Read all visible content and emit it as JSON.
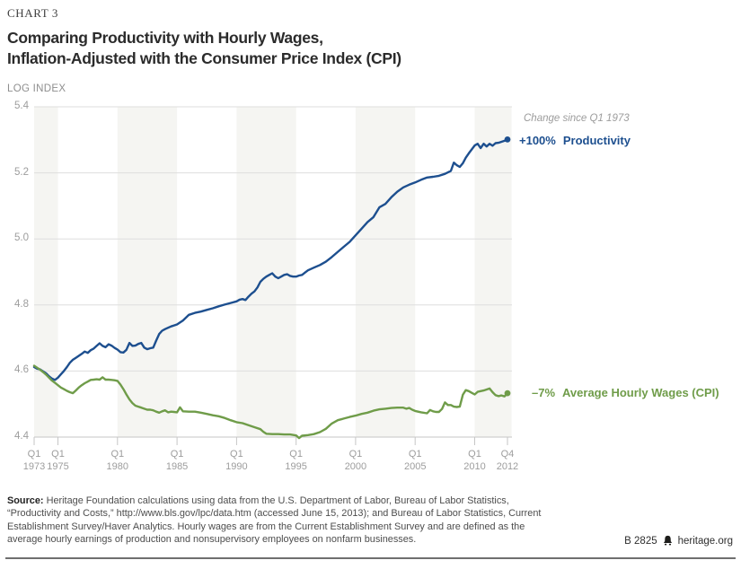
{
  "header": {
    "chart_label": "CHART 3",
    "title_line1": "Comparing Productivity with Hourly Wages,",
    "title_line2": "Inflation-Adjusted with the Consumer Price Index (CPI)"
  },
  "chart": {
    "y_axis_title": "LOG INDEX",
    "annotation_note": "Change since Q1 1973",
    "colors": {
      "productivity": "#1d4f8f",
      "wages": "#6f9c49",
      "band": "#f5f5f2",
      "gridline": "#dedede",
      "axis": "#c6c6c6",
      "tick_text": "#9d9d9d"
    }
  },
  "chart_data": {
    "type": "line",
    "title": "Comparing Productivity with Hourly Wages, Inflation-Adjusted with the Consumer Price Index (CPI)",
    "xlabel": "",
    "ylabel": "LOG INDEX",
    "ylim": [
      4.4,
      5.4
    ],
    "xlim": [
      1973,
      2013.1
    ],
    "grid": "horizontal",
    "legend_position": "right-annotations",
    "annotation_note": "Change since Q1 1973",
    "y_ticks": [
      {
        "label": "5.4",
        "v": 5.4
      },
      {
        "label": "5.2",
        "v": 5.2
      },
      {
        "label": "5.0",
        "v": 5.0
      },
      {
        "label": "4.8",
        "v": 4.8
      },
      {
        "label": "4.6",
        "v": 4.6
      },
      {
        "label": "4.4",
        "v": 4.4
      }
    ],
    "x_ticks": [
      {
        "q": "Q1",
        "year": "1973",
        "t": 1973
      },
      {
        "q": "Q1",
        "year": "1975",
        "t": 1975
      },
      {
        "q": "Q1",
        "year": "1980",
        "t": 1980
      },
      {
        "q": "Q1",
        "year": "1985",
        "t": 1985
      },
      {
        "q": "Q1",
        "year": "1990",
        "t": 1990
      },
      {
        "q": "Q1",
        "year": "1995",
        "t": 1995
      },
      {
        "q": "Q1",
        "year": "2000",
        "t": 2000
      },
      {
        "q": "Q1",
        "year": "2005",
        "t": 2005
      },
      {
        "q": "Q1",
        "year": "2010",
        "t": 2010
      },
      {
        "q": "Q4",
        "year": "2012",
        "t": 2012.75
      }
    ],
    "bands": [
      [
        1973,
        1975
      ],
      [
        1980,
        1985
      ],
      [
        1990,
        1995
      ],
      [
        2000,
        2005
      ],
      [
        2010,
        2013.1
      ]
    ],
    "series": [
      {
        "name": "Productivity",
        "change_label": "+100%",
        "color": "#1d4f8f",
        "points": [
          [
            1973.0,
            4.612
          ],
          [
            1973.25,
            4.607
          ],
          [
            1973.5,
            4.605
          ],
          [
            1973.75,
            4.599
          ],
          [
            1974.0,
            4.593
          ],
          [
            1974.25,
            4.584
          ],
          [
            1974.5,
            4.577
          ],
          [
            1974.75,
            4.573
          ],
          [
            1975.0,
            4.58
          ],
          [
            1975.25,
            4.59
          ],
          [
            1975.5,
            4.6
          ],
          [
            1975.75,
            4.612
          ],
          [
            1976.0,
            4.625
          ],
          [
            1976.25,
            4.634
          ],
          [
            1976.5,
            4.64
          ],
          [
            1976.75,
            4.646
          ],
          [
            1977.0,
            4.652
          ],
          [
            1977.25,
            4.659
          ],
          [
            1977.5,
            4.655
          ],
          [
            1977.75,
            4.663
          ],
          [
            1978.0,
            4.668
          ],
          [
            1978.25,
            4.676
          ],
          [
            1978.5,
            4.684
          ],
          [
            1978.75,
            4.676
          ],
          [
            1979.0,
            4.672
          ],
          [
            1979.25,
            4.681
          ],
          [
            1979.5,
            4.677
          ],
          [
            1979.75,
            4.67
          ],
          [
            1980.0,
            4.665
          ],
          [
            1980.25,
            4.657
          ],
          [
            1980.5,
            4.656
          ],
          [
            1980.75,
            4.664
          ],
          [
            1981.0,
            4.685
          ],
          [
            1981.25,
            4.676
          ],
          [
            1981.5,
            4.677
          ],
          [
            1981.75,
            4.682
          ],
          [
            1982.0,
            4.685
          ],
          [
            1982.25,
            4.671
          ],
          [
            1982.5,
            4.666
          ],
          [
            1982.75,
            4.669
          ],
          [
            1983.0,
            4.671
          ],
          [
            1983.25,
            4.692
          ],
          [
            1983.5,
            4.712
          ],
          [
            1983.75,
            4.722
          ],
          [
            1984.0,
            4.727
          ],
          [
            1984.25,
            4.731
          ],
          [
            1984.5,
            4.735
          ],
          [
            1984.75,
            4.738
          ],
          [
            1985.0,
            4.741
          ],
          [
            1985.5,
            4.753
          ],
          [
            1986.0,
            4.77
          ],
          [
            1986.5,
            4.776
          ],
          [
            1987.0,
            4.78
          ],
          [
            1987.5,
            4.785
          ],
          [
            1988.0,
            4.79
          ],
          [
            1988.5,
            4.796
          ],
          [
            1989.0,
            4.801
          ],
          [
            1989.5,
            4.806
          ],
          [
            1990.0,
            4.811
          ],
          [
            1990.25,
            4.816
          ],
          [
            1990.5,
            4.818
          ],
          [
            1990.75,
            4.815
          ],
          [
            1991.0,
            4.825
          ],
          [
            1991.25,
            4.834
          ],
          [
            1991.5,
            4.841
          ],
          [
            1991.75,
            4.853
          ],
          [
            1992.0,
            4.87
          ],
          [
            1992.25,
            4.879
          ],
          [
            1992.5,
            4.886
          ],
          [
            1992.75,
            4.891
          ],
          [
            1993.0,
            4.896
          ],
          [
            1993.25,
            4.886
          ],
          [
            1993.5,
            4.881
          ],
          [
            1993.75,
            4.886
          ],
          [
            1994.0,
            4.891
          ],
          [
            1994.25,
            4.893
          ],
          [
            1994.5,
            4.888
          ],
          [
            1994.75,
            4.886
          ],
          [
            1995.0,
            4.886
          ],
          [
            1995.25,
            4.889
          ],
          [
            1995.5,
            4.891
          ],
          [
            1995.75,
            4.898
          ],
          [
            1996.0,
            4.905
          ],
          [
            1996.5,
            4.913
          ],
          [
            1997.0,
            4.921
          ],
          [
            1997.5,
            4.931
          ],
          [
            1998.0,
            4.945
          ],
          [
            1998.5,
            4.961
          ],
          [
            1999.0,
            4.976
          ],
          [
            1999.5,
            4.991
          ],
          [
            1999.75,
            5.001
          ],
          [
            2000.0,
            5.011
          ],
          [
            2000.5,
            5.031
          ],
          [
            2001.0,
            5.051
          ],
          [
            2001.5,
            5.066
          ],
          [
            2002.0,
            5.096
          ],
          [
            2002.5,
            5.106
          ],
          [
            2003.0,
            5.126
          ],
          [
            2003.5,
            5.143
          ],
          [
            2004.0,
            5.156
          ],
          [
            2004.5,
            5.164
          ],
          [
            2005.0,
            5.171
          ],
          [
            2005.5,
            5.179
          ],
          [
            2006.0,
            5.186
          ],
          [
            2006.5,
            5.188
          ],
          [
            2007.0,
            5.191
          ],
          [
            2007.5,
            5.197
          ],
          [
            2008.0,
            5.206
          ],
          [
            2008.25,
            5.231
          ],
          [
            2008.5,
            5.223
          ],
          [
            2008.75,
            5.218
          ],
          [
            2009.0,
            5.229
          ],
          [
            2009.25,
            5.246
          ],
          [
            2009.5,
            5.259
          ],
          [
            2009.75,
            5.271
          ],
          [
            2010.0,
            5.283
          ],
          [
            2010.25,
            5.288
          ],
          [
            2010.5,
            5.275
          ],
          [
            2010.75,
            5.288
          ],
          [
            2011.0,
            5.28
          ],
          [
            2011.25,
            5.288
          ],
          [
            2011.5,
            5.282
          ],
          [
            2011.75,
            5.29
          ],
          [
            2012.0,
            5.291
          ],
          [
            2012.25,
            5.294
          ],
          [
            2012.5,
            5.297
          ],
          [
            2012.75,
            5.301
          ]
        ]
      },
      {
        "name": "Average Hourly Wages (CPI)",
        "change_label": "–7%",
        "color": "#6f9c49",
        "points": [
          [
            1973.0,
            4.616
          ],
          [
            1973.25,
            4.61
          ],
          [
            1973.5,
            4.604
          ],
          [
            1973.75,
            4.597
          ],
          [
            1974.0,
            4.589
          ],
          [
            1974.25,
            4.58
          ],
          [
            1974.5,
            4.571
          ],
          [
            1974.75,
            4.564
          ],
          [
            1975.0,
            4.557
          ],
          [
            1975.25,
            4.55
          ],
          [
            1975.5,
            4.545
          ],
          [
            1975.75,
            4.54
          ],
          [
            1976.0,
            4.536
          ],
          [
            1976.25,
            4.533
          ],
          [
            1976.5,
            4.541
          ],
          [
            1976.75,
            4.55
          ],
          [
            1977.0,
            4.557
          ],
          [
            1977.25,
            4.563
          ],
          [
            1977.5,
            4.568
          ],
          [
            1977.75,
            4.573
          ],
          [
            1978.0,
            4.574
          ],
          [
            1978.25,
            4.575
          ],
          [
            1978.5,
            4.574
          ],
          [
            1978.75,
            4.581
          ],
          [
            1979.0,
            4.574
          ],
          [
            1979.25,
            4.574
          ],
          [
            1979.5,
            4.573
          ],
          [
            1979.75,
            4.572
          ],
          [
            1980.0,
            4.57
          ],
          [
            1980.25,
            4.559
          ],
          [
            1980.5,
            4.545
          ],
          [
            1980.75,
            4.529
          ],
          [
            1981.0,
            4.514
          ],
          [
            1981.25,
            4.503
          ],
          [
            1981.5,
            4.495
          ],
          [
            1981.75,
            4.492
          ],
          [
            1982.0,
            4.489
          ],
          [
            1982.25,
            4.486
          ],
          [
            1982.5,
            4.483
          ],
          [
            1982.75,
            4.483
          ],
          [
            1983.0,
            4.481
          ],
          [
            1983.25,
            4.477
          ],
          [
            1983.5,
            4.474
          ],
          [
            1983.75,
            4.478
          ],
          [
            1984.0,
            4.481
          ],
          [
            1984.25,
            4.475
          ],
          [
            1984.5,
            4.477
          ],
          [
            1984.75,
            4.476
          ],
          [
            1985.0,
            4.475
          ],
          [
            1985.25,
            4.49
          ],
          [
            1985.5,
            4.478
          ],
          [
            1986.0,
            4.477
          ],
          [
            1986.5,
            4.477
          ],
          [
            1987.0,
            4.474
          ],
          [
            1987.5,
            4.47
          ],
          [
            1988.0,
            4.466
          ],
          [
            1988.5,
            4.463
          ],
          [
            1989.0,
            4.458
          ],
          [
            1989.5,
            4.451
          ],
          [
            1990.0,
            4.445
          ],
          [
            1990.5,
            4.442
          ],
          [
            1991.0,
            4.436
          ],
          [
            1991.5,
            4.43
          ],
          [
            1992.0,
            4.424
          ],
          [
            1992.25,
            4.416
          ],
          [
            1992.5,
            4.41
          ],
          [
            1993.0,
            4.409
          ],
          [
            1993.5,
            4.409
          ],
          [
            1994.0,
            4.408
          ],
          [
            1994.5,
            4.408
          ],
          [
            1995.0,
            4.405
          ],
          [
            1995.25,
            4.397
          ],
          [
            1995.5,
            4.404
          ],
          [
            1996.0,
            4.406
          ],
          [
            1996.5,
            4.409
          ],
          [
            1997.0,
            4.415
          ],
          [
            1997.5,
            4.425
          ],
          [
            1998.0,
            4.441
          ],
          [
            1998.5,
            4.451
          ],
          [
            1999.0,
            4.456
          ],
          [
            1999.5,
            4.461
          ],
          [
            2000.0,
            4.465
          ],
          [
            2000.5,
            4.47
          ],
          [
            2001.0,
            4.474
          ],
          [
            2001.5,
            4.48
          ],
          [
            2002.0,
            4.484
          ],
          [
            2002.5,
            4.486
          ],
          [
            2003.0,
            4.488
          ],
          [
            2003.5,
            4.489
          ],
          [
            2004.0,
            4.489
          ],
          [
            2004.25,
            4.486
          ],
          [
            2004.5,
            4.488
          ],
          [
            2004.75,
            4.483
          ],
          [
            2005.0,
            4.479
          ],
          [
            2005.5,
            4.475
          ],
          [
            2006.0,
            4.472
          ],
          [
            2006.25,
            4.482
          ],
          [
            2006.5,
            4.478
          ],
          [
            2006.75,
            4.476
          ],
          [
            2007.0,
            4.476
          ],
          [
            2007.25,
            4.485
          ],
          [
            2007.5,
            4.505
          ],
          [
            2007.75,
            4.497
          ],
          [
            2008.0,
            4.497
          ],
          [
            2008.25,
            4.492
          ],
          [
            2008.5,
            4.491
          ],
          [
            2008.75,
            4.492
          ],
          [
            2009.0,
            4.528
          ],
          [
            2009.25,
            4.542
          ],
          [
            2009.5,
            4.539
          ],
          [
            2009.75,
            4.534
          ],
          [
            2010.0,
            4.529
          ],
          [
            2010.25,
            4.537
          ],
          [
            2010.5,
            4.539
          ],
          [
            2010.75,
            4.541
          ],
          [
            2011.0,
            4.544
          ],
          [
            2011.25,
            4.547
          ],
          [
            2011.5,
            4.536
          ],
          [
            2011.75,
            4.527
          ],
          [
            2012.0,
            4.524
          ],
          [
            2012.25,
            4.526
          ],
          [
            2012.5,
            4.523
          ],
          [
            2012.75,
            4.533
          ]
        ]
      }
    ]
  },
  "footer": {
    "source_label": "Source:",
    "source_text": " Heritage Foundation calculations using data from the U.S. Department of Labor, Bureau of Labor Statistics, “Productivity and Costs,” http://www.bls.gov/lpc/data.htm (accessed June 15, 2013); and Bureau of Labor Statistics, Current Establishment Survey/Haver Analytics. Hourly wages are from the Current Establishment Survey and are defined as the average hourly earnings of production and nonsupervisory employees on nonfarm businesses.",
    "report_id": "B 2825",
    "site": "heritage.org"
  }
}
